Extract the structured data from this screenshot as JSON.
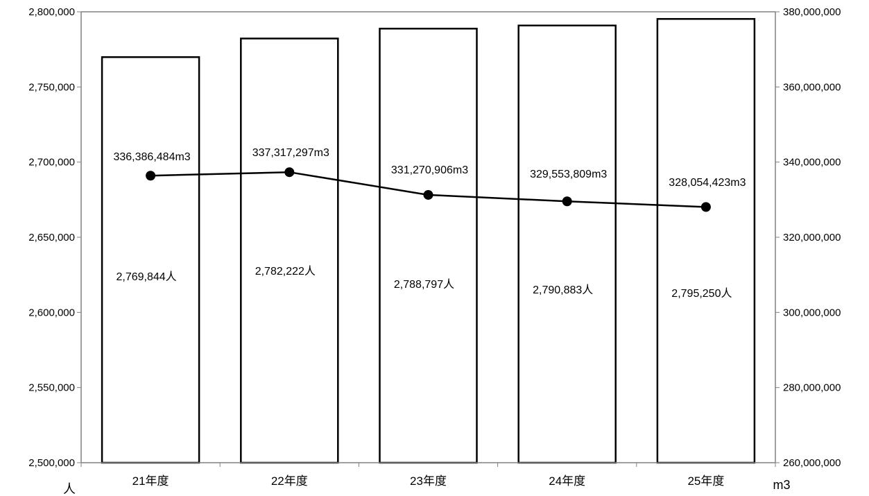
{
  "chart_data": {
    "type": "bar+line",
    "categories": [
      "21年度",
      "22年度",
      "23年度",
      "24年度",
      "25年度"
    ],
    "series": [
      {
        "type": "bar",
        "axis": "left",
        "values": [
          2769844,
          2782222,
          2788797,
          2790883,
          2795250
        ],
        "labels": [
          "2,769,844人",
          "2,782,222人",
          "2,788,797人",
          "2,790,883人",
          "2,795,250人"
        ]
      },
      {
        "type": "line",
        "axis": "right",
        "values": [
          336386484,
          337317297,
          331270906,
          329553809,
          328054423
        ],
        "labels": [
          "336,386,484m3",
          "337,317,297m3",
          "331,270,906m3",
          "329,553,809m3",
          "328,054,423m3"
        ]
      }
    ],
    "y_left": {
      "unit": "人",
      "ylim": [
        2500000,
        2800000
      ],
      "ticks": [
        2500000,
        2550000,
        2600000,
        2650000,
        2700000,
        2750000,
        2800000
      ],
      "tick_labels": [
        "2,500,000",
        "2,550,000",
        "2,600,000",
        "2,650,000",
        "2,700,000",
        "2,750,000",
        "2,800,000"
      ]
    },
    "y_right": {
      "unit": "m3",
      "ylim": [
        260000000,
        380000000
      ],
      "ticks": [
        260000000,
        280000000,
        300000000,
        320000000,
        340000000,
        360000000,
        380000000
      ],
      "tick_labels": [
        "260,000,000",
        "280,000,000",
        "300,000,000",
        "320,000,000",
        "340,000,000",
        "360,000,000",
        "380,000,000"
      ]
    },
    "grid": false,
    "legend": "none",
    "colors": {
      "bar_fill": "#ffffff",
      "bar_stroke": "#000000",
      "line": "#000000",
      "axis": "#808080"
    }
  }
}
